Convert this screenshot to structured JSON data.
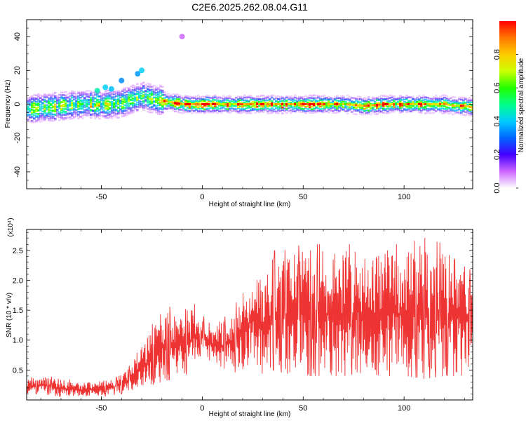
{
  "chart_data": [
    {
      "type": "heatmap",
      "title": "C2E6.2025.262.08.04.G11",
      "xlabel": "Height of straight line (km)",
      "ylabel": "Frequency (Hz)",
      "xlim": [
        -87,
        134
      ],
      "ylim": [
        -50,
        50
      ],
      "xticks": [
        -50,
        0,
        50,
        100
      ],
      "yticks": [
        40,
        20,
        0,
        -20,
        -40
      ],
      "grid": false,
      "colorbar": {
        "label": "Normalized spectral amplitude",
        "range": [
          0,
          1
        ],
        "ticks": [
          "0.0",
          "0.2",
          "0.4",
          "0.6",
          "0.8"
        ],
        "colormap": [
          "#ffffff",
          "#cc66ff",
          "#4400ff",
          "#0066ff",
          "#00ccff",
          "#00ff88",
          "#22ff00",
          "#ccff00",
          "#ffcc00",
          "#ff7700",
          "#ff0000"
        ]
      },
      "ridge": {
        "x": [
          -87,
          -80,
          -70,
          -60,
          -50,
          -45,
          -40,
          -35,
          -30,
          -25,
          -20,
          -15,
          -10,
          -5,
          0,
          10,
          20,
          30,
          40,
          50,
          60,
          70,
          80,
          90,
          100,
          110,
          120,
          125,
          130,
          134
        ],
        "frequency": [
          -3,
          -2,
          -1,
          0,
          0,
          0,
          1,
          3,
          5,
          3,
          2,
          1,
          0,
          0,
          0,
          0,
          0,
          0,
          0,
          0,
          0,
          0,
          -1,
          0,
          0,
          0,
          0,
          -1,
          -1,
          -2
        ]
      },
      "outliers": {
        "x": [
          -52,
          -48,
          -45,
          -40,
          -32,
          -30,
          -10
        ],
        "frequency": [
          8,
          10,
          9,
          14,
          18,
          20,
          40
        ]
      }
    },
    {
      "type": "line",
      "xlabel": "Height of straight line (km)",
      "ylabel": "SNR (10 * v/v)",
      "y_multiplier": "(x10⁴)",
      "xlim": [
        -87,
        134
      ],
      "ylim": [
        0,
        2.85
      ],
      "xticks": [
        -50,
        0,
        50,
        100
      ],
      "yticks": [
        "0.5",
        "1.0",
        "1.5",
        "2.0",
        "2.5"
      ],
      "grid": false,
      "color": "#ee3333",
      "envelope": {
        "x": [
          -87,
          -80,
          -70,
          -60,
          -50,
          -40,
          -35,
          -30,
          -25,
          -20,
          -15,
          -10,
          -5,
          0,
          5,
          10,
          15,
          20,
          25,
          30,
          35,
          40,
          50,
          60,
          70,
          80,
          90,
          100,
          110,
          120,
          130,
          134
        ],
        "low": [
          0.1,
          0.1,
          0.05,
          0.05,
          0.05,
          0.1,
          0.15,
          0.2,
          0.25,
          0.3,
          0.35,
          0.4,
          0.45,
          0.8,
          0.6,
          0.5,
          0.45,
          0.5,
          0.6,
          0.4,
          0.5,
          0.45,
          0.4,
          0.4,
          0.4,
          0.45,
          0.4,
          0.4,
          0.35,
          0.4,
          0.4,
          0.5
        ],
        "high": [
          0.35,
          0.4,
          0.35,
          0.3,
          0.3,
          0.4,
          0.6,
          0.9,
          1.2,
          1.5,
          1.5,
          1.4,
          1.6,
          1.4,
          1.2,
          1.3,
          1.5,
          1.7,
          2.1,
          2.1,
          2.4,
          2.4,
          2.5,
          2.5,
          2.5,
          2.5,
          2.5,
          2.5,
          2.6,
          2.5,
          2.3,
          2.0
        ]
      }
    }
  ]
}
